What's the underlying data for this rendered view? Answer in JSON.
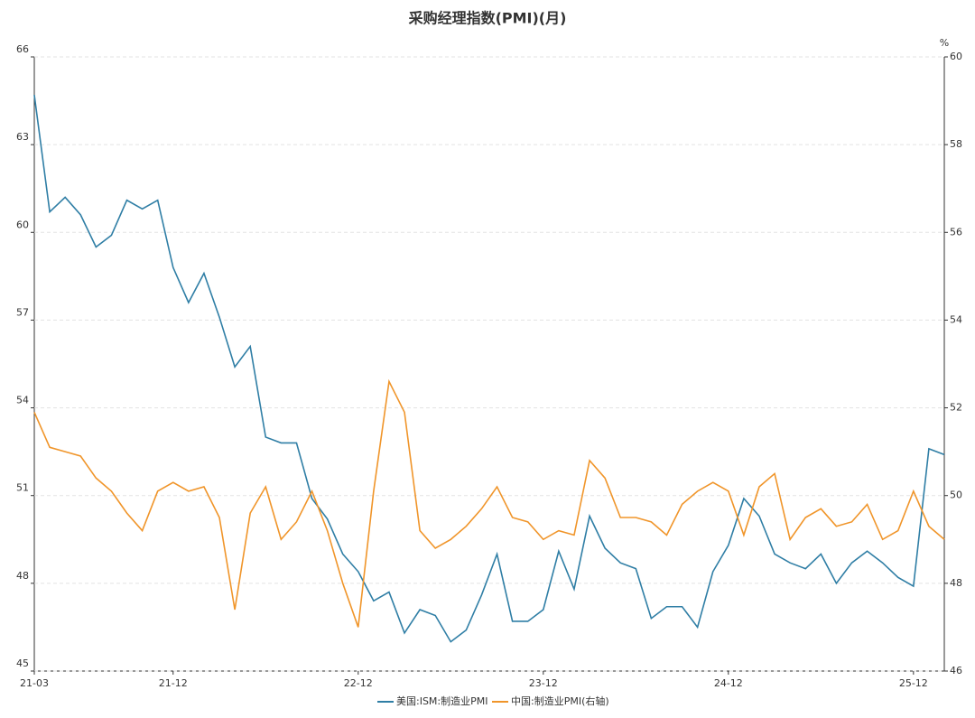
{
  "chart_data": {
    "type": "line",
    "title": "采购经理指数(PMI)(月)",
    "y2_unit": "%",
    "categories": [
      "21-03",
      null,
      null,
      null,
      null,
      null,
      null,
      null,
      null,
      "21-12",
      null,
      null,
      null,
      null,
      null,
      null,
      null,
      null,
      null,
      null,
      null,
      "22-12",
      null,
      null,
      null,
      null,
      null,
      null,
      null,
      null,
      null,
      null,
      null,
      "23-12",
      null,
      null,
      null,
      null,
      null,
      null,
      null,
      null,
      null,
      null,
      null,
      "24-12",
      null,
      null,
      null,
      null,
      null,
      null,
      null,
      null,
      null,
      null,
      null,
      "25-12",
      null,
      null
    ],
    "series": [
      {
        "name": "美国:ISM:制造业PMI",
        "color": "#2f7ea5",
        "values": [
          64.7,
          60.7,
          61.2,
          60.6,
          59.5,
          59.9,
          61.1,
          60.8,
          61.1,
          58.8,
          57.6,
          58.6,
          57.1,
          55.4,
          56.1,
          53.0,
          52.8,
          52.8,
          50.9,
          50.2,
          49.0,
          48.4,
          47.4,
          47.7,
          46.3,
          47.1,
          46.9,
          46.0,
          46.4,
          47.6,
          49.0,
          46.7,
          46.7,
          47.1,
          49.1,
          47.8,
          50.3,
          49.2,
          48.7,
          48.5,
          46.8,
          47.2,
          47.2,
          46.5,
          48.4,
          49.3,
          50.9,
          50.3,
          49.0,
          48.7,
          48.5,
          49.0,
          48.0,
          48.7,
          49.1,
          48.7,
          48.2,
          47.9,
          52.6,
          52.4
        ]
      },
      {
        "name": "中国:制造业PMI(右轴)",
        "color": "#f0952a",
        "axis": "y2",
        "values": [
          51.9,
          51.1,
          51.0,
          50.9,
          50.4,
          50.1,
          49.6,
          49.2,
          50.1,
          50.3,
          50.1,
          50.2,
          49.5,
          47.4,
          49.6,
          50.2,
          49.0,
          49.4,
          50.1,
          49.2,
          48.0,
          47.0,
          50.1,
          52.6,
          51.9,
          49.2,
          48.8,
          49.0,
          49.3,
          49.7,
          50.2,
          49.5,
          49.4,
          49.0,
          49.2,
          49.1,
          50.8,
          50.4,
          49.5,
          49.5,
          49.4,
          49.1,
          49.8,
          50.1,
          50.3,
          50.1,
          49.1,
          50.2,
          50.5,
          49.0,
          49.5,
          49.7,
          49.3,
          49.4,
          49.8,
          49.0,
          49.2,
          50.1,
          49.3,
          49.0
        ]
      }
    ],
    "ylim": [
      45,
      66
    ],
    "yticks": [
      45,
      48,
      51,
      54,
      57,
      60,
      63,
      66
    ],
    "y2lim": [
      46,
      60
    ],
    "y2ticks": [
      46,
      48,
      50,
      52,
      54,
      56,
      58,
      60
    ],
    "grid": true,
    "legend": "bottom"
  }
}
